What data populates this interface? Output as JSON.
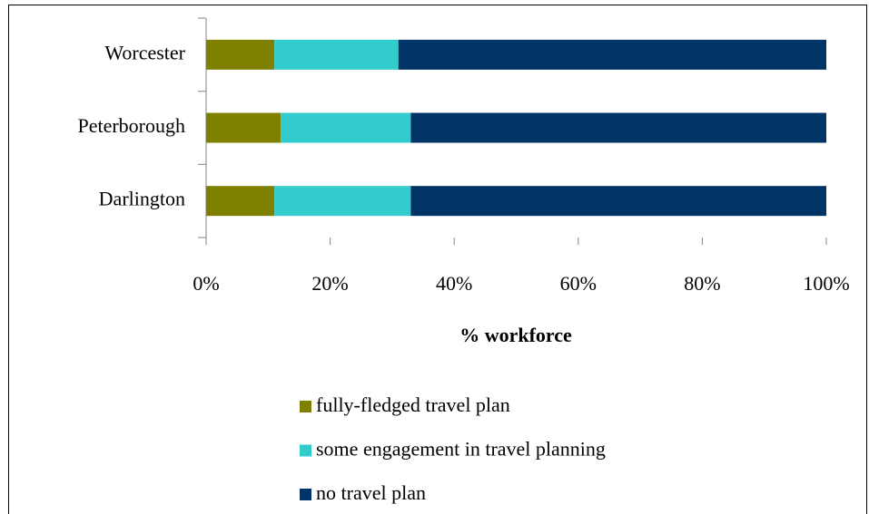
{
  "chart_data": {
    "type": "stacked_barh",
    "xlabel": "% workforce",
    "categories": [
      "Worcester",
      "Peterborough",
      "Darlington"
    ],
    "series": [
      {
        "name": "fully-fledged travel plan",
        "color": "#808000",
        "values": [
          11,
          12,
          11
        ]
      },
      {
        "name": "some engagement in travel planning",
        "color": "#33cccc",
        "values": [
          20,
          21,
          22
        ]
      },
      {
        "name": "no travel plan",
        "color": "#003366",
        "values": [
          69,
          67,
          67
        ]
      }
    ],
    "xlim": [
      0,
      100
    ],
    "xticks": [
      {
        "value": 0,
        "label": "0%"
      },
      {
        "value": 20,
        "label": "20%"
      },
      {
        "value": 40,
        "label": "40%"
      },
      {
        "value": 60,
        "label": "60%"
      },
      {
        "value": 80,
        "label": "80%"
      },
      {
        "value": 100,
        "label": "100%"
      }
    ],
    "legend": "bottom"
  }
}
